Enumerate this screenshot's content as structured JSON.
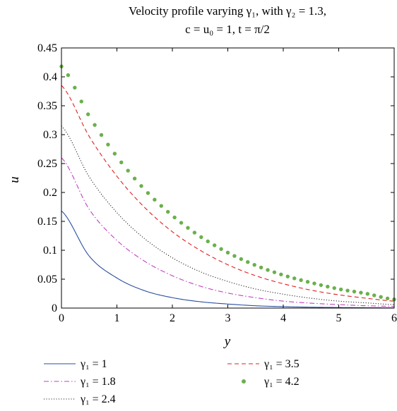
{
  "chart_data": {
    "type": "line",
    "title_line1": "Velocity profile varying γ₁, with γ₂ = 1.3,",
    "title_line2": "c = u₀ = 1, t = π/2",
    "xlabel": "y",
    "ylabel": "u",
    "xlim": [
      0,
      6
    ],
    "ylim": [
      0,
      0.45
    ],
    "x_ticks": [
      "0",
      "1",
      "2",
      "3",
      "4",
      "5",
      "6"
    ],
    "y_ticks": [
      "0",
      "0.05",
      "0.1",
      "0.15",
      "0.2",
      "0.25",
      "0.3",
      "0.35",
      "0.4",
      "0.45"
    ],
    "grid": false,
    "legend_placement": "below",
    "x": [
      0,
      0.5,
      1,
      1.5,
      2,
      2.5,
      3,
      3.5,
      4,
      4.5,
      5,
      5.5,
      6
    ],
    "series": [
      {
        "name": "γ₁ = 1",
        "style": "solid",
        "color": "#2b4ea0",
        "values": [
          0.168,
          0.09,
          0.052,
          0.03,
          0.018,
          0.011,
          0.007,
          0.004,
          0.0025,
          0.0015,
          0.001,
          0.0006,
          0.0004
        ]
      },
      {
        "name": "γ₁ = 1.8",
        "style": "dashdot",
        "color": "#c040c0",
        "values": [
          0.26,
          0.171,
          0.117,
          0.081,
          0.056,
          0.038,
          0.026,
          0.018,
          0.012,
          0.0085,
          0.006,
          0.004,
          0.003
        ]
      },
      {
        "name": "γ₁ = 2.4",
        "style": "dotted",
        "color": "#000000",
        "values": [
          0.315,
          0.227,
          0.165,
          0.12,
          0.087,
          0.063,
          0.046,
          0.033,
          0.024,
          0.017,
          0.012,
          0.009,
          0.006
        ]
      },
      {
        "name": "γ₁ = 3.5",
        "style": "dashed",
        "color": "#e02020",
        "values": [
          0.385,
          0.297,
          0.228,
          0.174,
          0.132,
          0.1,
          0.075,
          0.056,
          0.042,
          0.031,
          0.023,
          0.017,
          0.012
        ]
      },
      {
        "name": "γ₁ = 4.2",
        "style": "dots",
        "color": "#6ab04c",
        "values": [
          0.418,
          0.332,
          0.262,
          0.205,
          0.16,
          0.124,
          0.096,
          0.074,
          0.057,
          0.044,
          0.033,
          0.025,
          0.015
        ]
      }
    ]
  }
}
